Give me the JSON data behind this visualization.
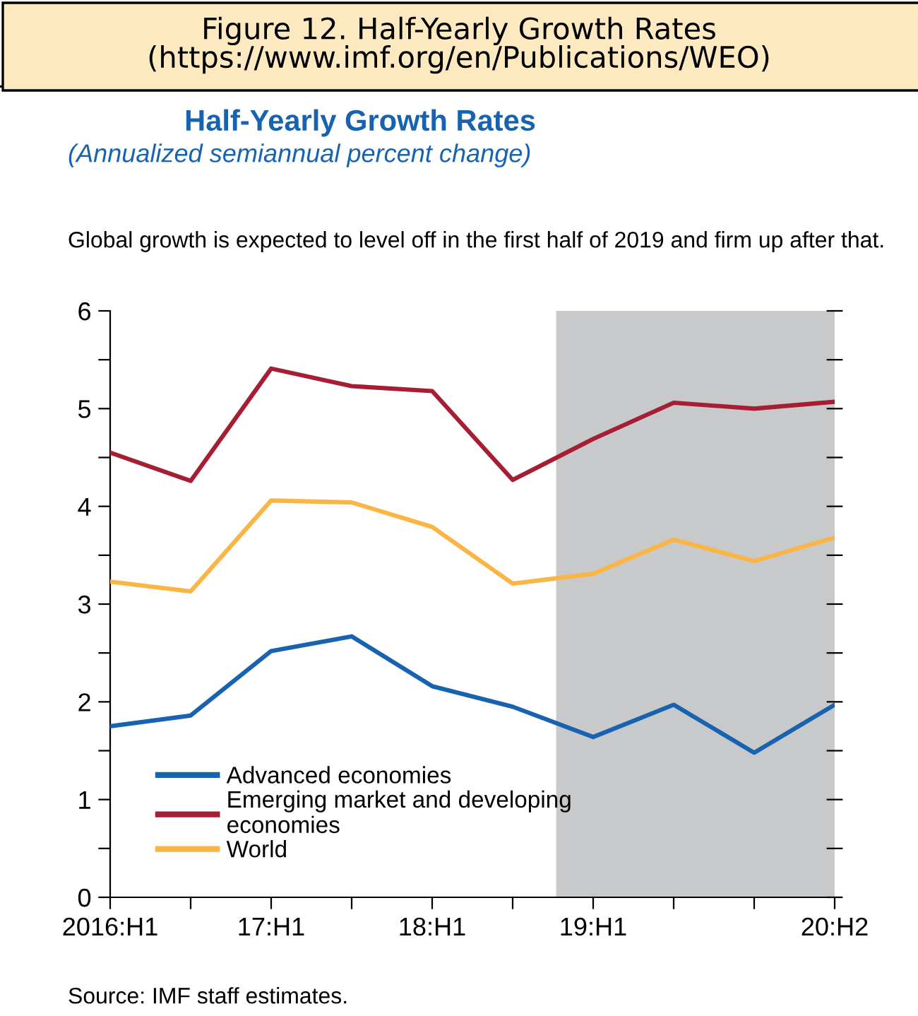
{
  "chart_data": {
    "type": "line",
    "title": "Half-Yearly Growth Rates",
    "subtitle": "(Annualized semiannual percent change)",
    "annotations": [
      "Figure 12. Half-Yearly Growth Rates\n(https://www.imf.org/en/Publications/WEO)",
      "Global growth is expected to level off in the first half of 2019 and firm up after that.",
      "Source: IMF staff estimates."
    ],
    "categories": [
      "2016:H1",
      null,
      "17:H1",
      null,
      "18:H1",
      null,
      "19:H1",
      null,
      null,
      "20:H2"
    ],
    "series": [
      {
        "name": "Advanced economies",
        "color": "#1763b0",
        "values": [
          1.75,
          1.86,
          2.52,
          2.67,
          2.16,
          1.95,
          1.64,
          1.97,
          1.48,
          1.97
        ]
      },
      {
        "name": "Emerging market and developing\neconomies",
        "color": "#a61e34",
        "values": [
          4.55,
          4.26,
          5.41,
          5.23,
          5.18,
          4.27,
          4.69,
          5.06,
          5.0,
          5.07
        ]
      },
      {
        "name": "World",
        "color": "#fbb545",
        "values": [
          3.23,
          3.13,
          4.06,
          4.04,
          3.79,
          3.21,
          3.31,
          3.66,
          3.44,
          3.68
        ]
      }
    ],
    "ylim": [
      0,
      6
    ],
    "yticks": [
      0,
      {
        "value": 0.5,
        "label": null
      },
      1,
      {
        "value": 1.5,
        "label": null
      },
      2,
      {
        "value": 2.5,
        "label": null
      },
      3,
      {
        "value": 3.5,
        "label": null
      },
      4,
      {
        "value": 4.5,
        "label": null
      },
      5,
      {
        "value": 5.5,
        "label": null
      },
      6
    ],
    "legend": "bottom left",
    "grid": false,
    "marker": "none",
    "line_style": "solid"
  }
}
